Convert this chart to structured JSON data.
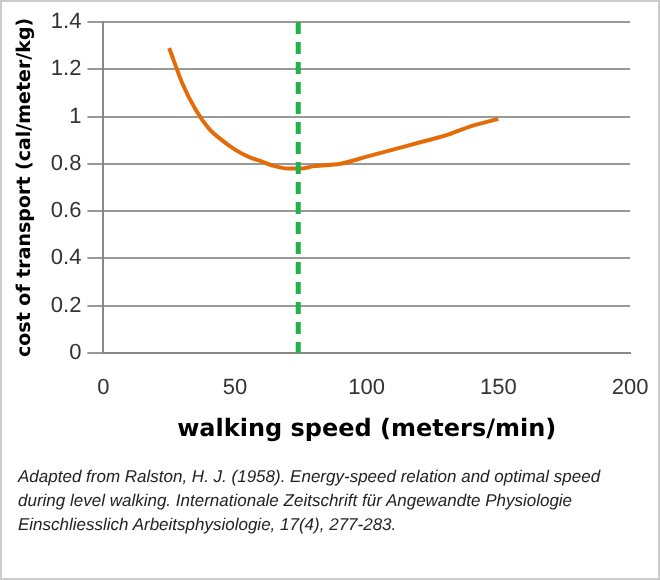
{
  "chart_data": {
    "type": "line",
    "xlabel": "walking speed (meters/min)",
    "ylabel": "cost of transport (cal/meter/kg)",
    "series": [
      {
        "color": "#e36c09",
        "x": [
          25,
          30,
          35,
          40,
          45,
          50,
          55,
          60,
          65,
          70,
          75,
          80,
          90,
          100,
          110,
          120,
          130,
          140,
          150
        ],
        "values": [
          1.29,
          1.14,
          1.03,
          0.95,
          0.9,
          0.86,
          0.83,
          0.81,
          0.79,
          0.78,
          0.78,
          0.79,
          0.8,
          0.83,
          0.86,
          0.89,
          0.92,
          0.96,
          0.99
        ]
      }
    ],
    "xlim": [
      0,
      200
    ],
    "xticks": [
      0,
      50,
      100,
      150,
      200
    ],
    "ylim": [
      0,
      1.4
    ],
    "yticks": [
      {
        "value": 0,
        "label": "0"
      },
      {
        "value": 0.2,
        "label": "0.2"
      },
      {
        "value": 0.4,
        "label": "0.4"
      },
      {
        "value": 0.6,
        "label": "0.6"
      },
      {
        "value": 0.8,
        "label": "0.8"
      },
      {
        "value": 1,
        "label": "1"
      },
      {
        "value": 1.2,
        "label": "1.2"
      },
      {
        "value": 1.4,
        "label": "1.4"
      }
    ],
    "grid": "y",
    "legend": false,
    "marker": "none",
    "line_style": "solid",
    "ref_lines": [
      {
        "axis": "x",
        "value": 74,
        "color": "#22b14c",
        "line_style": "dashed"
      }
    ],
    "annotations": [
      "Adapted from Ralston, H. J. (1958). Energy-speed relation and optimal speed during level walking. Internationale Zeitschrift für Angewandte Physiologie Einschliesslich Arbeitsphysiologie, 17(4), 277-283."
    ]
  }
}
